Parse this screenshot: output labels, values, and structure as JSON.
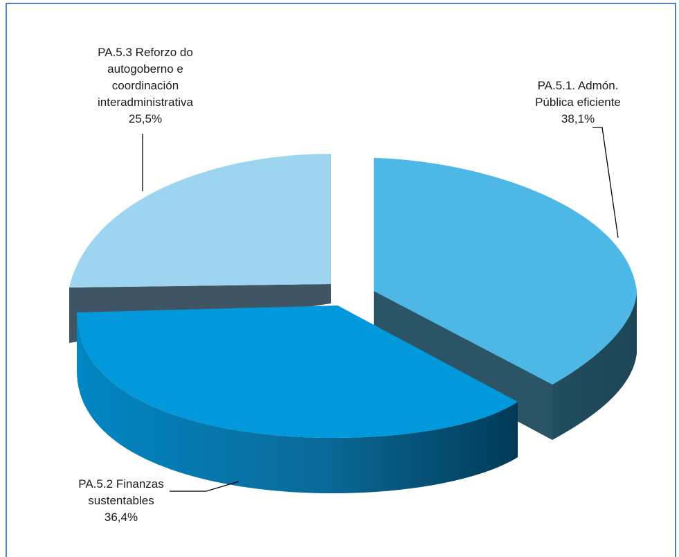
{
  "chart_data": {
    "type": "pie",
    "title": "",
    "style": "3d-exploded",
    "slices": [
      {
        "name": "PA.5.1. Admón. Pública eficiente",
        "label_lines": [
          "PA.5.1. Admón.",
          "Pública eficiente",
          "38,1%"
        ],
        "value": 38.1,
        "color": "#4db8e6"
      },
      {
        "name": "PA.5.2 Finanzas sustentables",
        "label_lines": [
          "PA.5.2 Finanzas",
          "sustentables",
          "36,4%"
        ],
        "value": 36.4,
        "color": "#0199dc"
      },
      {
        "name": "PA.5.3 Reforzo do autogoberno e coordinación interadministrativa",
        "label_lines": [
          "PA.5.3 Reforzo do",
          "autogoberno e",
          "coordinación",
          "interadministrativa",
          "25,5%"
        ],
        "value": 25.5,
        "color": "#9dd5f1"
      }
    ]
  }
}
